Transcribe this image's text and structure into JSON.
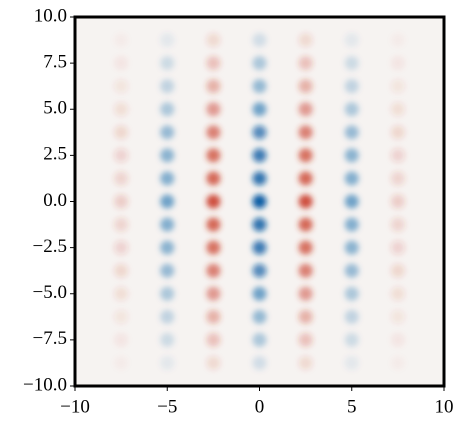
{
  "chart_data": {
    "type": "heatmap",
    "x": [
      -7.5,
      -5,
      -2.5,
      0,
      2.5,
      5,
      7.5
    ],
    "y": [
      8.75,
      7.5,
      6.25,
      5,
      3.75,
      2.5,
      1.25,
      0,
      -1.25,
      -2.5,
      -3.75,
      -5,
      -6.25,
      -7.5,
      -8.75
    ],
    "values": [
      [
        -0.03,
        0.08,
        -0.13,
        0.15,
        -0.13,
        0.08,
        -0.03
      ],
      [
        -0.06,
        0.17,
        -0.26,
        0.3,
        -0.26,
        0.17,
        -0.06
      ],
      [
        -0.08,
        0.22,
        -0.34,
        0.4,
        -0.34,
        0.22,
        -0.08
      ],
      [
        -0.11,
        0.3,
        -0.47,
        0.55,
        -0.47,
        0.3,
        -0.11
      ],
      [
        -0.14,
        0.39,
        -0.6,
        0.7,
        -0.6,
        0.39,
        -0.14
      ],
      [
        -0.16,
        0.44,
        -0.68,
        0.8,
        -0.68,
        0.44,
        -0.16
      ],
      [
        -0.17,
        0.47,
        -0.72,
        0.85,
        -0.72,
        0.47,
        -0.17
      ],
      [
        -0.2,
        0.55,
        -0.85,
        1,
        -0.85,
        0.55,
        -0.2
      ],
      [
        -0.17,
        0.47,
        -0.72,
        0.85,
        -0.72,
        0.47,
        -0.17
      ],
      [
        -0.16,
        0.44,
        -0.68,
        0.8,
        -0.68,
        0.44,
        -0.16
      ],
      [
        -0.14,
        0.39,
        -0.6,
        0.7,
        -0.6,
        0.39,
        -0.14
      ],
      [
        -0.11,
        0.3,
        -0.47,
        0.55,
        -0.47,
        0.3,
        -0.11
      ],
      [
        -0.08,
        0.22,
        -0.34,
        0.4,
        -0.34,
        0.22,
        -0.08
      ],
      [
        -0.06,
        0.17,
        -0.26,
        0.3,
        -0.26,
        0.17,
        -0.06
      ],
      [
        -0.03,
        0.08,
        -0.13,
        0.15,
        -0.13,
        0.08,
        -0.03
      ]
    ],
    "positive_color": "#0b5fa5",
    "negative_color": "#c8341f",
    "background": "#f6f3f1",
    "xlim": [
      -10,
      10
    ],
    "ylim": [
      -10,
      10
    ],
    "xticks": [
      {
        "value": -10,
        "label": "−10"
      },
      {
        "value": -5,
        "label": "−5"
      },
      0,
      5,
      10
    ],
    "yticks": [
      {
        "value": -10,
        "label": "−10.0"
      },
      {
        "value": -7.5,
        "label": "−7.5"
      },
      {
        "value": -5,
        "label": "−5.0"
      },
      {
        "value": -2.5,
        "label": "−2.5"
      },
      {
        "value": 0,
        "label": "0.0"
      },
      {
        "value": 2.5,
        "label": "2.5"
      },
      {
        "value": 5,
        "label": "5.0"
      },
      {
        "value": 7.5,
        "label": "7.5"
      },
      {
        "value": 10,
        "label": "10.0"
      }
    ]
  }
}
